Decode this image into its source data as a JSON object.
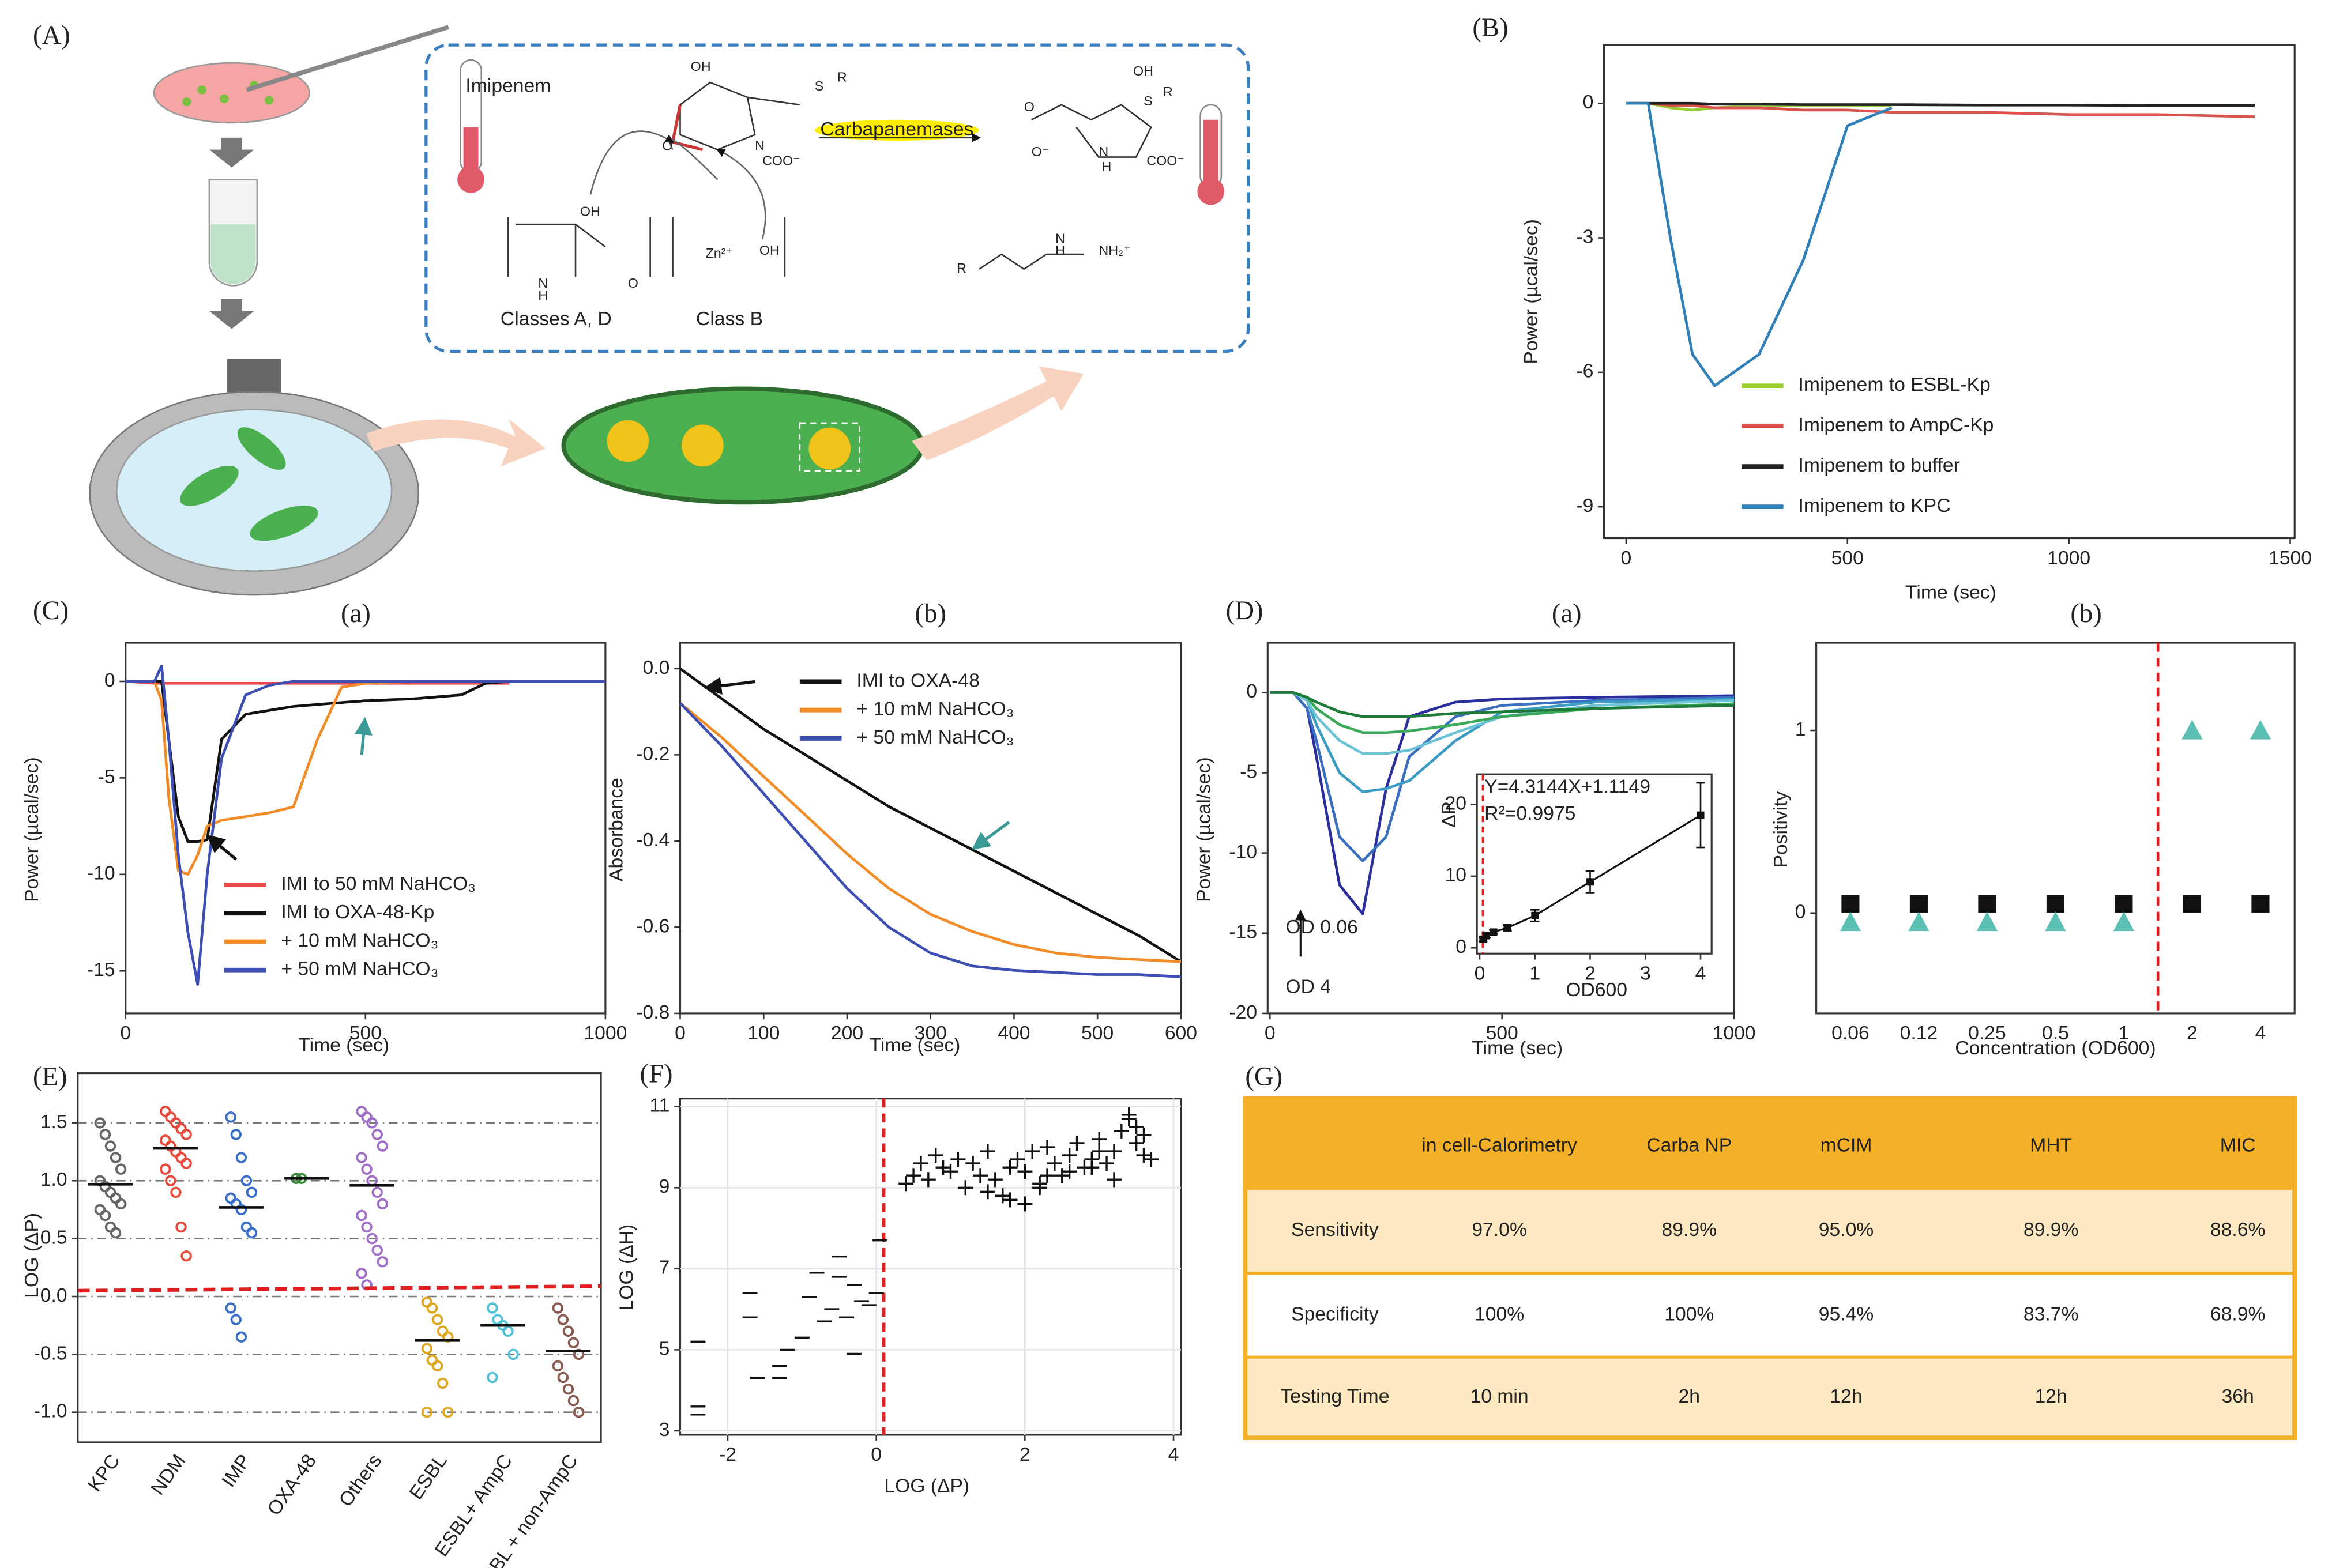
{
  "panel_labels": [
    "(A)",
    "(B)",
    "(C)",
    "(a)",
    "(b)",
    "(D)",
    "(a)",
    "(b)",
    "(E)",
    "(F)",
    "(G)"
  ],
  "diagram": {
    "labels": [
      "Imipenem",
      "Carbapanemases",
      "Classes A, D",
      "Class B"
    ],
    "structure_text": [
      "OH",
      "S",
      "R",
      "N",
      "O",
      "COO⁻",
      "OH",
      "S",
      "R",
      "O⁻",
      "O",
      "N",
      "H",
      "COO⁻",
      "OH",
      "N",
      "H",
      "O",
      "Zn²⁺",
      "OH",
      "R",
      "N",
      "H",
      "NH₂⁺"
    ]
  },
  "chart_data": [
    {
      "type": "line",
      "xlabel": "Time (sec)",
      "ylabel": "Power (µcal/sec)",
      "xlim": [
        -50,
        1510
      ],
      "ylim": [
        -9.7,
        1.3
      ],
      "xticks": [
        0,
        500,
        1000,
        1500
      ],
      "yticks": [
        0,
        -3,
        -6,
        -9
      ],
      "x": [
        0,
        50,
        100,
        150,
        200,
        300,
        400,
        500,
        600,
        800,
        1000,
        1200,
        1420
      ],
      "series": [
        {
          "name": "Imipenem to ESBL-Kp",
          "color": "#9acd32",
          "values": [
            0,
            0,
            -0.1,
            -0.15,
            -0.1,
            -0.05,
            -0.05,
            -0.05,
            -0.05,
            null,
            null,
            null,
            null
          ]
        },
        {
          "name": "Imipenem to AmpC-Kp",
          "color": "#d9534f",
          "values": [
            0,
            0,
            -0.05,
            -0.05,
            -0.1,
            -0.1,
            -0.15,
            -0.15,
            -0.2,
            -0.2,
            -0.25,
            -0.25,
            -0.3
          ]
        },
        {
          "name": "Imipenem to buffer",
          "color": "#222222",
          "values": [
            0,
            0,
            0,
            0,
            -0.02,
            -0.02,
            -0.03,
            -0.03,
            -0.03,
            -0.04,
            -0.04,
            -0.05,
            -0.05
          ]
        },
        {
          "name": "Imipenem to KPC",
          "color": "#2f7fb8",
          "values": [
            0,
            0,
            -3,
            -5.6,
            -6.3,
            -5.6,
            -3.5,
            -0.5,
            -0.1,
            null,
            null,
            null,
            null
          ]
        }
      ]
    },
    {
      "type": "line",
      "xlabel": "Time (sec)",
      "ylabel": "Power (µcal/sec)",
      "xlim": [
        0,
        1000
      ],
      "ylim": [
        -17.2,
        2
      ],
      "xticks": [
        0,
        500,
        1000
      ],
      "yticks": [
        0,
        -5,
        -10,
        -15
      ],
      "x": [
        0,
        60,
        75,
        90,
        110,
        130,
        150,
        170,
        200,
        250,
        300,
        350,
        400,
        450,
        500,
        600,
        700,
        750,
        800,
        1000
      ],
      "series": [
        {
          "name": "IMI to 50 mM NaHCO₃",
          "color": "#e8474c",
          "values": [
            0,
            -0.1,
            -0.1,
            -0.1,
            -0.1,
            -0.1,
            -0.1,
            -0.1,
            -0.1,
            -0.1,
            -0.1,
            -0.1,
            -0.1,
            -0.1,
            -0.1,
            -0.1,
            -0.1,
            -0.1,
            -0.1,
            null
          ]
        },
        {
          "name": "IMI to OXA-48-Kp",
          "color": "#111111",
          "values": [
            0,
            0,
            0,
            -3,
            -7,
            -8.3,
            -8.3,
            -8.2,
            -3,
            -1.7,
            -1.5,
            -1.3,
            -1.2,
            -1.1,
            -1,
            -0.9,
            -0.7,
            -0.1,
            0,
            0
          ]
        },
        {
          "name": "+ 10 mM NaHCO₃",
          "color": "#f28c28",
          "values": [
            0,
            0,
            -1,
            -6,
            -9.8,
            -10,
            -9,
            -7.5,
            -7.2,
            -7,
            -6.8,
            -6.5,
            -3,
            -0.3,
            -0.1,
            0,
            0,
            0,
            0,
            0
          ]
        },
        {
          "name": "+ 50 mM NaHCO₃",
          "color": "#3d4fb3",
          "values": [
            0,
            0,
            0.8,
            -3,
            -9,
            -13,
            -15.7,
            -10,
            -4,
            -0.7,
            -0.2,
            0,
            0,
            0,
            0,
            0,
            0,
            0,
            0,
            0
          ]
        }
      ]
    },
    {
      "type": "line",
      "xlabel": "Time (sec)",
      "ylabel": "Absorbance",
      "xlim": [
        0,
        600
      ],
      "ylim": [
        -0.8,
        0.06
      ],
      "xticks": [
        0,
        100,
        200,
        300,
        400,
        500,
        600
      ],
      "yticks": [
        {
          "value": 0,
          "label": "0.0"
        },
        -0.2,
        -0.4,
        -0.6,
        -0.8
      ],
      "x": [
        0,
        50,
        100,
        150,
        200,
        250,
        300,
        350,
        400,
        450,
        500,
        550,
        600
      ],
      "series": [
        {
          "name": "IMI to OXA-48",
          "color": "#111111",
          "values": [
            0,
            -0.07,
            -0.14,
            -0.2,
            -0.26,
            -0.32,
            -0.37,
            -0.42,
            -0.47,
            -0.52,
            -0.57,
            -0.62,
            -0.68
          ]
        },
        {
          "name": "+ 10 mM NaHCO₃",
          "color": "#f28c28",
          "values": [
            -0.08,
            -0.16,
            -0.25,
            -0.34,
            -0.43,
            -0.51,
            -0.57,
            -0.61,
            -0.64,
            -0.66,
            -0.67,
            -0.675,
            -0.68
          ]
        },
        {
          "name": "+ 50 mM NaHCO₃",
          "color": "#3d4fb3",
          "values": [
            -0.08,
            -0.18,
            -0.29,
            -0.4,
            -0.51,
            -0.6,
            -0.66,
            -0.69,
            -0.7,
            -0.705,
            -0.71,
            -0.71,
            -0.715
          ]
        }
      ]
    },
    {
      "type": "line",
      "xlabel": "Time (sec)",
      "ylabel": "Power (µcal/sec)",
      "xlim": [
        -5,
        1000
      ],
      "ylim": [
        -20,
        3.1
      ],
      "xticks": [
        0,
        500,
        1000
      ],
      "yticks": [
        0,
        -5,
        -10,
        -15,
        -20
      ],
      "annotations": [
        "OD 0.06",
        "OD 4"
      ],
      "x": [
        0,
        50,
        80,
        100,
        150,
        200,
        250,
        300,
        400,
        500,
        700,
        1000
      ],
      "series": [
        {
          "color": "#2b2f9e",
          "values": [
            0,
            0,
            -1,
            -4,
            -12,
            -13.8,
            -6,
            -1.5,
            -0.6,
            -0.4,
            -0.3,
            -0.2
          ]
        },
        {
          "color": "#3a6fc0",
          "values": [
            0,
            0,
            -1,
            -3,
            -9,
            -10.5,
            -9,
            -4,
            -1.5,
            -0.8,
            -0.5,
            -0.3
          ]
        },
        {
          "color": "#3a9bc4",
          "values": [
            0,
            0,
            -0.5,
            -2,
            -5,
            -6.2,
            -6,
            -5.5,
            -3,
            -1.2,
            -0.6,
            -0.4
          ]
        },
        {
          "color": "#6cc3d5",
          "values": [
            0,
            0,
            -0.5,
            -1.5,
            -3,
            -3.8,
            -3.8,
            -3.6,
            -2.5,
            -1.5,
            -0.8,
            -0.5
          ]
        },
        {
          "color": "#3aaa5a",
          "values": [
            0,
            0,
            -0.3,
            -1,
            -2,
            -2.5,
            -2.5,
            -2.4,
            -2,
            -1.5,
            -1,
            -0.7
          ]
        },
        {
          "color": "#1f7a3a",
          "values": [
            0,
            0,
            -0.3,
            -0.6,
            -1.2,
            -1.5,
            -1.5,
            -1.5,
            -1.3,
            -1.2,
            -1,
            -0.8
          ]
        }
      ]
    },
    {
      "type": "errorbar",
      "xlabel": "OD600",
      "ylabel": "ΔP",
      "xlim": [
        -0.05,
        4.2
      ],
      "ylim": [
        -0.8,
        24.2
      ],
      "xticks": [
        0,
        1,
        2,
        3,
        4
      ],
      "yticks": [
        0,
        10,
        20
      ],
      "annotations": [
        "Y=4.3144X+1.1149",
        "R²=0.9975"
      ],
      "x": [
        0.06,
        0.12,
        0.25,
        0.5,
        1,
        2,
        4
      ],
      "values": [
        1.2,
        1.7,
        2.2,
        2.8,
        4.5,
        9.2,
        18.5
      ],
      "errors": [
        0.3,
        0.3,
        0.3,
        0.4,
        0.8,
        1.5,
        4.5
      ],
      "color": "#111111"
    },
    {
      "type": "scatter",
      "xlabel": "Concentration (OD600)",
      "ylabel": "Positivity",
      "ylim": [
        -0.55,
        1.48
      ],
      "yticks": [
        0,
        1
      ],
      "categories": [
        "0.06",
        "0.12",
        "0.25",
        "0.5",
        "1",
        "2",
        "4"
      ],
      "series": [
        {
          "color": "#111111",
          "marker": "square",
          "values": [
            0.05,
            0.05,
            0.05,
            0.05,
            0.05,
            0.05,
            0.05
          ]
        },
        {
          "color": "#5cbfb4",
          "marker": "triangle",
          "values": [
            -0.05,
            -0.05,
            -0.05,
            -0.05,
            -0.05,
            1,
            1
          ]
        }
      ]
    },
    {
      "type": "strip",
      "ylabel": "LOG (ΔP)",
      "ylim": [
        -1.26,
        1.93
      ],
      "grid": true,
      "yticks": [
        {
          "value": -1,
          "label": "-1.0"
        },
        -0.5,
        {
          "value": 0,
          "label": "0.0"
        },
        0.5,
        {
          "value": 1,
          "label": "1.0"
        },
        1.5
      ],
      "categories": [
        "KPC",
        "NDM",
        "IMP",
        "OXA-48",
        "Others",
        "ESBL",
        "ESBL+ AmpC",
        "non-ESBL + non-AmpC"
      ],
      "colors": [
        "#666666",
        "#e84a3c",
        "#3a6fc9",
        "#3a8a3a",
        "#a070c8",
        "#e0a820",
        "#4fc3d8",
        "#8b5a50"
      ],
      "values": [
        [
          1.5,
          1.4,
          1.3,
          1.2,
          1.1,
          1.0,
          0.95,
          0.9,
          0.85,
          0.8,
          0.75,
          0.7,
          0.6,
          0.55
        ],
        [
          1.6,
          1.55,
          1.5,
          1.45,
          1.4,
          1.35,
          1.3,
          1.25,
          1.2,
          1.15,
          1.1,
          1.0,
          0.9,
          0.6,
          0.35
        ],
        [
          1.55,
          1.4,
          1.2,
          1.0,
          0.9,
          0.85,
          0.8,
          0.75,
          0.6,
          0.55,
          -0.1,
          -0.2,
          -0.35
        ],
        [
          1.02,
          1.02
        ],
        [
          1.6,
          1.55,
          1.5,
          1.4,
          1.3,
          1.2,
          1.1,
          1.0,
          0.9,
          0.8,
          0.7,
          0.6,
          0.5,
          0.4,
          0.3,
          0.2,
          0.1
        ],
        [
          -0.05,
          -0.1,
          -0.2,
          -0.3,
          -0.35,
          -0.45,
          -0.55,
          -0.6,
          -0.75,
          -1.0,
          -1.0
        ],
        [
          -0.1,
          -0.2,
          -0.25,
          -0.3,
          -0.5,
          -0.7
        ],
        [
          -0.1,
          -0.2,
          -0.3,
          -0.4,
          -0.5,
          -0.6,
          -0.7,
          -0.8,
          -0.9,
          -1.0
        ]
      ],
      "medians": [
        0.97,
        1.28,
        0.77,
        1.02,
        0.96,
        -0.38,
        -0.25,
        -0.47
      ],
      "threshold": 0.05
    },
    {
      "type": "scatter",
      "xlabel": "LOG (ΔP)",
      "ylabel": "LOG (ΔH)",
      "xlim": [
        -2.64,
        4.1
      ],
      "ylim": [
        2.9,
        11.2
      ],
      "xticks": [
        -2,
        0,
        2,
        4
      ],
      "yticks": [
        3,
        5,
        7,
        9,
        11
      ],
      "grid": true,
      "threshold_x": 0.1,
      "series": [
        {
          "color": "#111111",
          "marker": "minus",
          "x": [
            -2.4,
            -2.4,
            -2.4,
            -1.7,
            -1.7,
            -1.6,
            -1.3,
            -1.3,
            -1.2,
            -1.0,
            -0.9,
            -0.8,
            -0.7,
            -0.6,
            -0.5,
            -0.4,
            -0.3,
            -0.2,
            -0.1,
            0.0,
            0.05,
            -0.5,
            -0.3
          ],
          "values": [
            5.2,
            3.6,
            3.4,
            6.4,
            5.8,
            4.3,
            4.6,
            4.3,
            5.0,
            5.3,
            6.3,
            6.9,
            5.7,
            6.0,
            6.8,
            5.8,
            6.6,
            6.2,
            6.1,
            6.4,
            7.7,
            7.3,
            4.9
          ]
        },
        {
          "color": "#111111",
          "marker": "plus",
          "x": [
            0.4,
            0.5,
            0.6,
            0.7,
            0.8,
            0.9,
            1.0,
            1.1,
            1.2,
            1.3,
            1.4,
            1.5,
            1.6,
            1.7,
            1.8,
            1.9,
            2.0,
            2.1,
            2.2,
            2.3,
            2.4,
            2.5,
            2.6,
            2.7,
            2.8,
            2.9,
            3.0,
            3.1,
            3.2,
            3.3,
            3.4,
            3.5,
            3.6,
            3.7,
            1.5,
            1.8,
            2.0,
            2.3,
            2.6,
            2.9,
            3.2,
            3.5,
            1.7,
            2.2,
            3.0,
            3.4,
            3.6
          ],
          "values": [
            9.1,
            9.3,
            9.6,
            9.2,
            9.8,
            9.5,
            9.4,
            9.7,
            9.0,
            9.6,
            9.3,
            9.9,
            9.2,
            8.8,
            9.5,
            9.7,
            9.4,
            9.9,
            9.1,
            10.0,
            9.6,
            9.3,
            9.8,
            10.1,
            9.5,
            9.7,
            10.2,
            9.6,
            9.9,
            10.4,
            10.7,
            10.1,
            9.8,
            9.7,
            8.9,
            8.7,
            8.6,
            9.3,
            9.4,
            9.5,
            9.2,
            10.5,
            8.8,
            9.0,
            9.9,
            10.8,
            10.3
          ]
        }
      ]
    }
  ],
  "table": {
    "header": [
      "in cell-Calorimetry",
      "Carba NP",
      "mCIM",
      "MHT",
      "MIC"
    ],
    "rows": [
      [
        "Sensitivity",
        "97.0%",
        "89.9%",
        "95.0%",
        "89.9%",
        "88.6%"
      ],
      [
        "Specificity",
        "100%",
        "100%",
        "95.4%",
        "83.7%",
        "68.9%"
      ],
      [
        "Testing Time",
        "10 min",
        "2h",
        "12h",
        "12h",
        "36h"
      ]
    ]
  }
}
